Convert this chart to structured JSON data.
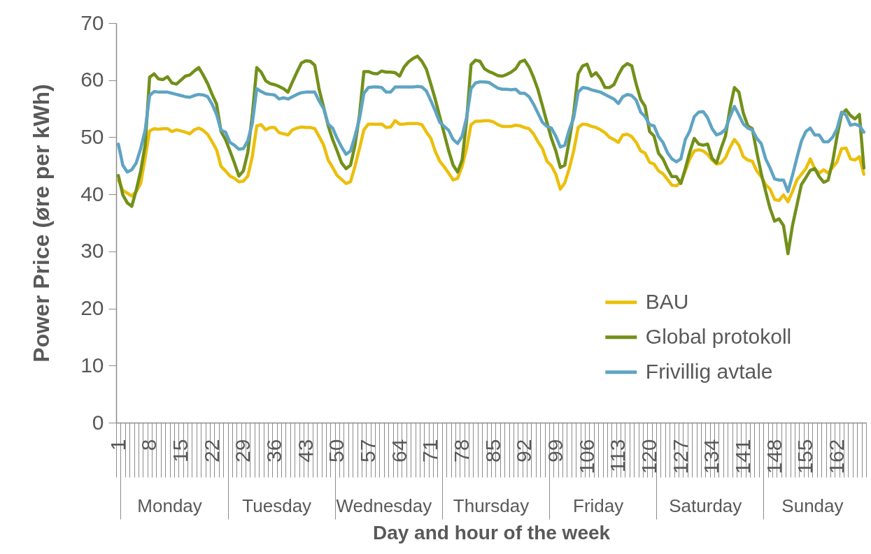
{
  "chart_data": {
    "type": "line",
    "xlabel": "Day and hour of the week",
    "ylabel": "Power Price (øre per kWh)",
    "categories": [
      "1",
      null,
      null,
      null,
      null,
      null,
      null,
      "8",
      null,
      null,
      null,
      null,
      null,
      null,
      "15",
      null,
      null,
      null,
      null,
      null,
      null,
      "22",
      null,
      null,
      null,
      null,
      null,
      null,
      "29",
      null,
      null,
      null,
      null,
      null,
      null,
      "36",
      null,
      null,
      null,
      null,
      null,
      null,
      "43",
      null,
      null,
      null,
      null,
      null,
      null,
      "50",
      null,
      null,
      null,
      null,
      null,
      null,
      "57",
      null,
      null,
      null,
      null,
      null,
      null,
      "64",
      null,
      null,
      null,
      null,
      null,
      null,
      "71",
      null,
      null,
      null,
      null,
      null,
      null,
      "78",
      null,
      null,
      null,
      null,
      null,
      null,
      "85",
      null,
      null,
      null,
      null,
      null,
      null,
      "92",
      null,
      null,
      null,
      null,
      null,
      null,
      "99",
      null,
      null,
      null,
      null,
      null,
      null,
      "106",
      null,
      null,
      null,
      null,
      null,
      null,
      "113",
      null,
      null,
      null,
      null,
      null,
      null,
      "120",
      null,
      null,
      null,
      null,
      null,
      null,
      "127",
      null,
      null,
      null,
      null,
      null,
      null,
      "134",
      null,
      null,
      null,
      null,
      null,
      null,
      "141",
      null,
      null,
      null,
      null,
      null,
      null,
      "148",
      null,
      null,
      null,
      null,
      null,
      null,
      "155",
      null,
      null,
      null,
      null,
      null,
      null,
      "162",
      null,
      null,
      null,
      null,
      null,
      null
    ],
    "annotations": [
      "Monday",
      "Tuesday",
      "Wednesday",
      "Thursday",
      "Friday",
      "Saturday",
      "Sunday"
    ],
    "ylim": [
      0,
      70
    ],
    "yticks": [
      0,
      10,
      20,
      30,
      40,
      50,
      60,
      70
    ],
    "legend": "bottom right",
    "series": [
      {
        "name": "BAU",
        "color": "#ebbf0c",
        "values": [
          42.5,
          40.7,
          40.2,
          39.7,
          40.5,
          41.9,
          46.4,
          51.1,
          51.5,
          51.4,
          51.5,
          51.5,
          51.0,
          51.3,
          51.1,
          50.9,
          50.6,
          51.3,
          51.6,
          51.2,
          50.5,
          49.2,
          47.8,
          44.9,
          44.1,
          43.2,
          42.8,
          42.2,
          42.3,
          43.2,
          46.6,
          52.0,
          52.2,
          51.3,
          51.7,
          51.7,
          50.8,
          50.6,
          50.4,
          51.3,
          51.6,
          51.8,
          51.7,
          51.7,
          51.5,
          50.1,
          48.6,
          46.0,
          44.7,
          43.3,
          42.6,
          41.9,
          42.2,
          44.9,
          48.0,
          51.3,
          52.3,
          52.3,
          52.3,
          52.3,
          51.7,
          51.8,
          52.9,
          52.3,
          52.3,
          52.4,
          52.4,
          52.4,
          52.2,
          50.9,
          49.8,
          47.5,
          45.8,
          44.8,
          43.7,
          42.5,
          42.8,
          44.9,
          48.0,
          52.2,
          52.8,
          52.8,
          52.9,
          52.9,
          52.7,
          52.2,
          51.9,
          51.9,
          51.9,
          52.1,
          52.0,
          51.7,
          51.5,
          50.6,
          49.2,
          48.0,
          45.8,
          45.0,
          43.5,
          40.9,
          42.0,
          44.5,
          47.6,
          51.7,
          52.3,
          52.2,
          51.9,
          51.7,
          51.3,
          50.8,
          50.0,
          49.6,
          49.1,
          50.4,
          50.5,
          50.1,
          49.1,
          47.6,
          47.2,
          45.6,
          45.3,
          44.1,
          43.6,
          42.6,
          41.6,
          41.5,
          42.1,
          44.1,
          46.2,
          47.6,
          47.8,
          47.6,
          47.0,
          46.0,
          45.3,
          45.5,
          46.4,
          48.2,
          49.6,
          48.6,
          46.6,
          46.0,
          45.8,
          44.1,
          43.1,
          41.7,
          40.9,
          39.1,
          38.9,
          39.9,
          38.7,
          40.5,
          42.5,
          43.5,
          44.5,
          46.2,
          44.5,
          43.7,
          44.3,
          43.7,
          44.7,
          45.7,
          48.0,
          48.1,
          46.2,
          46.0,
          46.6,
          43.5
        ]
      },
      {
        "name": "Global protokoll",
        "color": "#72901a",
        "values": [
          43.3,
          39.9,
          38.5,
          37.9,
          40.7,
          44.1,
          48.6,
          60.5,
          61.1,
          60.2,
          60.1,
          60.6,
          59.5,
          59.3,
          60.0,
          60.7,
          60.9,
          61.6,
          62.2,
          60.9,
          59.4,
          57.5,
          55.8,
          51.0,
          49.6,
          47.6,
          45.5,
          43.2,
          44.1,
          47.4,
          53.8,
          62.2,
          61.4,
          59.9,
          59.4,
          59.2,
          58.9,
          58.5,
          57.9,
          59.7,
          61.4,
          63.0,
          63.4,
          63.3,
          62.6,
          58.3,
          55.2,
          52.0,
          49.6,
          47.6,
          45.5,
          44.5,
          45.1,
          48.6,
          53.8,
          61.5,
          61.5,
          61.2,
          61.1,
          61.6,
          61.4,
          61.4,
          61.3,
          60.7,
          62.3,
          63.2,
          63.8,
          64.2,
          63.3,
          61.9,
          59.3,
          56.6,
          53.6,
          50.6,
          47.6,
          45.1,
          43.9,
          46.0,
          52.8,
          62.7,
          63.5,
          63.3,
          62.0,
          61.5,
          61.2,
          60.8,
          60.7,
          61.0,
          61.4,
          62.0,
          63.2,
          63.5,
          62.3,
          60.5,
          58.3,
          55.5,
          52.6,
          49.8,
          47.6,
          44.7,
          45.1,
          49.4,
          54.2,
          61.1,
          62.5,
          62.8,
          60.7,
          61.3,
          60.3,
          58.7,
          58.7,
          59.2,
          60.9,
          62.3,
          62.9,
          62.5,
          59.3,
          56.6,
          55.4,
          51.0,
          50.2,
          47.2,
          46.2,
          44.5,
          43.1,
          43.1,
          41.9,
          44.5,
          47.4,
          49.8,
          48.8,
          48.6,
          48.8,
          46.3,
          45.5,
          48.0,
          50.2,
          55.0,
          58.7,
          57.9,
          54.2,
          52.0,
          51.5,
          47.4,
          43.7,
          40.5,
          37.5,
          35.3,
          35.7,
          34.5,
          29.6,
          34.5,
          38.1,
          41.7,
          42.9,
          44.2,
          44.5,
          43.1,
          42.1,
          42.5,
          45.7,
          50.2,
          54.0,
          54.8,
          53.8,
          53.2,
          54.0,
          44.6
        ]
      },
      {
        "name": "Frivillig avtale",
        "color": "#5fa4c3",
        "values": [
          48.8,
          45.1,
          43.9,
          44.3,
          45.5,
          48.0,
          51.2,
          57.3,
          58.0,
          57.9,
          57.9,
          57.9,
          57.7,
          57.5,
          57.3,
          57.1,
          57.0,
          57.3,
          57.5,
          57.4,
          57.1,
          55.8,
          54.0,
          51.2,
          50.9,
          49.1,
          48.6,
          47.9,
          48.0,
          49.4,
          52.4,
          58.5,
          58.0,
          57.6,
          57.5,
          57.4,
          56.7,
          56.9,
          56.7,
          57.1,
          57.5,
          57.8,
          57.9,
          57.9,
          57.9,
          56.3,
          55.0,
          52.3,
          51.6,
          49.8,
          48.3,
          47.0,
          47.6,
          50.2,
          53.2,
          57.7,
          58.7,
          58.8,
          58.8,
          58.7,
          57.9,
          57.9,
          58.8,
          58.8,
          58.8,
          58.8,
          58.8,
          58.9,
          58.8,
          58.1,
          56.4,
          54.6,
          52.6,
          51.9,
          51.2,
          49.6,
          48.9,
          50.2,
          53.4,
          58.5,
          59.5,
          59.7,
          59.7,
          59.6,
          59.1,
          58.6,
          58.4,
          58.4,
          58.3,
          58.4,
          57.7,
          57.7,
          57.1,
          55.8,
          54.2,
          52.6,
          51.9,
          51.6,
          50.2,
          48.3,
          48.6,
          51.3,
          53.4,
          57.9,
          58.7,
          58.6,
          58.3,
          58.1,
          57.9,
          57.5,
          57.1,
          56.7,
          55.9,
          57.1,
          57.5,
          57.3,
          56.5,
          54.4,
          53.6,
          52.2,
          52.0,
          50.1,
          49.1,
          47.3,
          46.2,
          45.7,
          46.2,
          49.6,
          51.1,
          53.6,
          54.4,
          54.5,
          53.4,
          51.5,
          50.4,
          50.7,
          51.4,
          53.6,
          55.4,
          53.9,
          52.3,
          51.6,
          51.3,
          49.8,
          48.9,
          46.2,
          44.6,
          42.7,
          42.5,
          42.5,
          40.5,
          43.3,
          46.4,
          49.3,
          51.0,
          51.6,
          50.4,
          50.4,
          49.2,
          49.2,
          50.0,
          51.5,
          54.4,
          53.9,
          52.1,
          52.3,
          52.0,
          50.9
        ]
      }
    ]
  }
}
